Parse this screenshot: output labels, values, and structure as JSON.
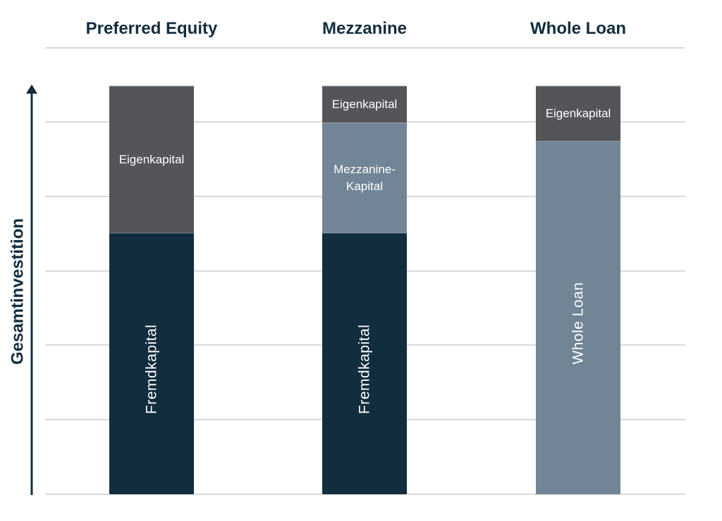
{
  "chart_data": {
    "type": "bar",
    "stacked": true,
    "normalized": true,
    "ylabel": "Gesamtinvestition",
    "ylim": [
      0,
      100
    ],
    "grid": true,
    "categories": [
      "Preferred Equity",
      "Mezzanine",
      "Whole Loan"
    ],
    "series": [
      {
        "name": "Fremdkapital",
        "label_orientation": "vertical",
        "values": [
          64,
          64,
          0
        ]
      },
      {
        "name": "Mezzanine-Kapital",
        "label_lines": [
          "Mezzanine-",
          "Kapital"
        ],
        "label_orientation": "horizontal",
        "values": [
          0,
          27,
          0
        ]
      },
      {
        "name": "Whole Loan",
        "label_orientation": "vertical",
        "values": [
          0,
          0,
          86.5
        ]
      },
      {
        "name": "Eigenkapital",
        "label_orientation": "horizontal",
        "values": [
          36,
          9,
          13.5
        ]
      }
    ],
    "colors": {
      "Fremdkapital": "#112d3e",
      "Mezzanine-Kapital": "#718597",
      "Whole Loan": "#718597",
      "Eigenkapital": "#535559",
      "title": "#112d3e",
      "axis": "#112d3e",
      "grid": "#d9d9d9"
    }
  }
}
